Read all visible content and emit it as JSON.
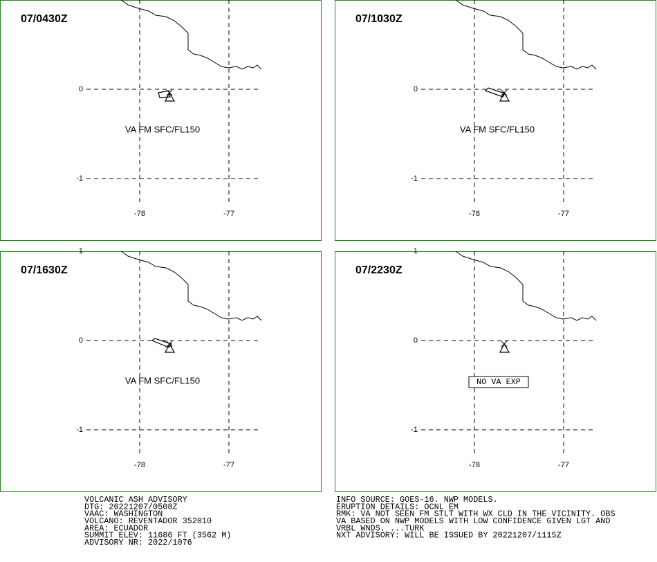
{
  "panels": [
    {
      "title": "07/0430Z",
      "y_labels": [
        "0",
        "-1"
      ],
      "x_labels": [
        "-78",
        "-77"
      ],
      "annotation": "VA FM SFC/FL150"
    },
    {
      "title": "07/1030Z",
      "y_labels": [
        "0",
        "-1"
      ],
      "x_labels": [
        "-78",
        "-77"
      ],
      "annotation": "VA FM SFC/FL150"
    },
    {
      "title": "07/1630Z",
      "y_labels": [
        "1",
        "0",
        "-1"
      ],
      "x_labels": [
        "-78",
        "-77"
      ],
      "annotation": "VA FM SFC/FL150"
    },
    {
      "title": "07/2230Z",
      "y_labels": [
        "1",
        "0",
        "-1"
      ],
      "x_labels": [
        "-78",
        "-77"
      ],
      "boxed_annotation": "NO VA EXP"
    }
  ],
  "advisory": {
    "left": [
      "VOLCANIC ASH ADVISORY",
      "DTG: 20221207/0508Z",
      "VAAC: WASHINGTON",
      "VOLCANO: REVENTADOR 352010",
      "AREA: ECUADOR",
      "SUMMIT ELEV: 11686 FT (3562 M)",
      "ADVISORY NR: 2022/1076"
    ],
    "right": [
      "INFO SOURCE: GOES-16. NWP MODELS.",
      "ERUPTION DETAILS: OCNL EM",
      "RMK: VA NOT SEEN FM STLT WITH WX CLD IN THE VICINITY. OBS",
      "VA BASED ON NWP MODELS WITH LOW CONFIDENCE GIVEN LGT AND",
      "VRBL WNDS. ...TURK",
      "NXT ADVISORY: WILL BE ISSUED BY 20221207/1115Z"
    ]
  }
}
